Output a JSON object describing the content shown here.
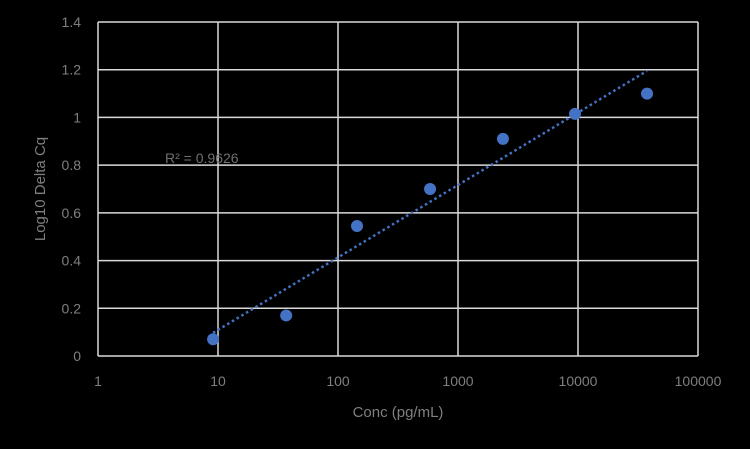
{
  "chart_data": {
    "type": "scatter",
    "title": "",
    "xlabel": "Conc (pg/mL)",
    "ylabel": "Log10 Delta Cq",
    "xscale": "log",
    "xlim": [
      1,
      100000
    ],
    "ylim": [
      0,
      1.4
    ],
    "x_ticks": [
      "1",
      "10",
      "100",
      "1000",
      "10000",
      "100000"
    ],
    "y_ticks": [
      "0",
      "0.2",
      "0.4",
      "0.6",
      "0.8",
      "1",
      "1.2",
      "1.4"
    ],
    "grid": true,
    "legend": null,
    "series": [
      {
        "name": "Log10 Delta Cq",
        "color": "#4472c4",
        "points": [
          {
            "x": 9.1,
            "y": 0.07
          },
          {
            "x": 37,
            "y": 0.17
          },
          {
            "x": 144,
            "y": 0.545
          },
          {
            "x": 585,
            "y": 0.7
          },
          {
            "x": 2370,
            "y": 0.91
          },
          {
            "x": 9440,
            "y": 1.015
          },
          {
            "x": 37600,
            "y": 1.1
          }
        ]
      }
    ],
    "trendline": {
      "type": "logarithmic",
      "style": "dotted",
      "color": "#4472c4",
      "start": {
        "x": 9.1,
        "y": 0.097
      },
      "end": {
        "x": 37600,
        "y": 1.195
      }
    },
    "annotations": [
      {
        "text": "R² = 0.9626",
        "x": 5,
        "y": 0.83
      }
    ]
  },
  "colors": {
    "background": "#000000",
    "grid": "#d9d9d9",
    "text": "#7f7f7f",
    "series": "#4472c4"
  }
}
